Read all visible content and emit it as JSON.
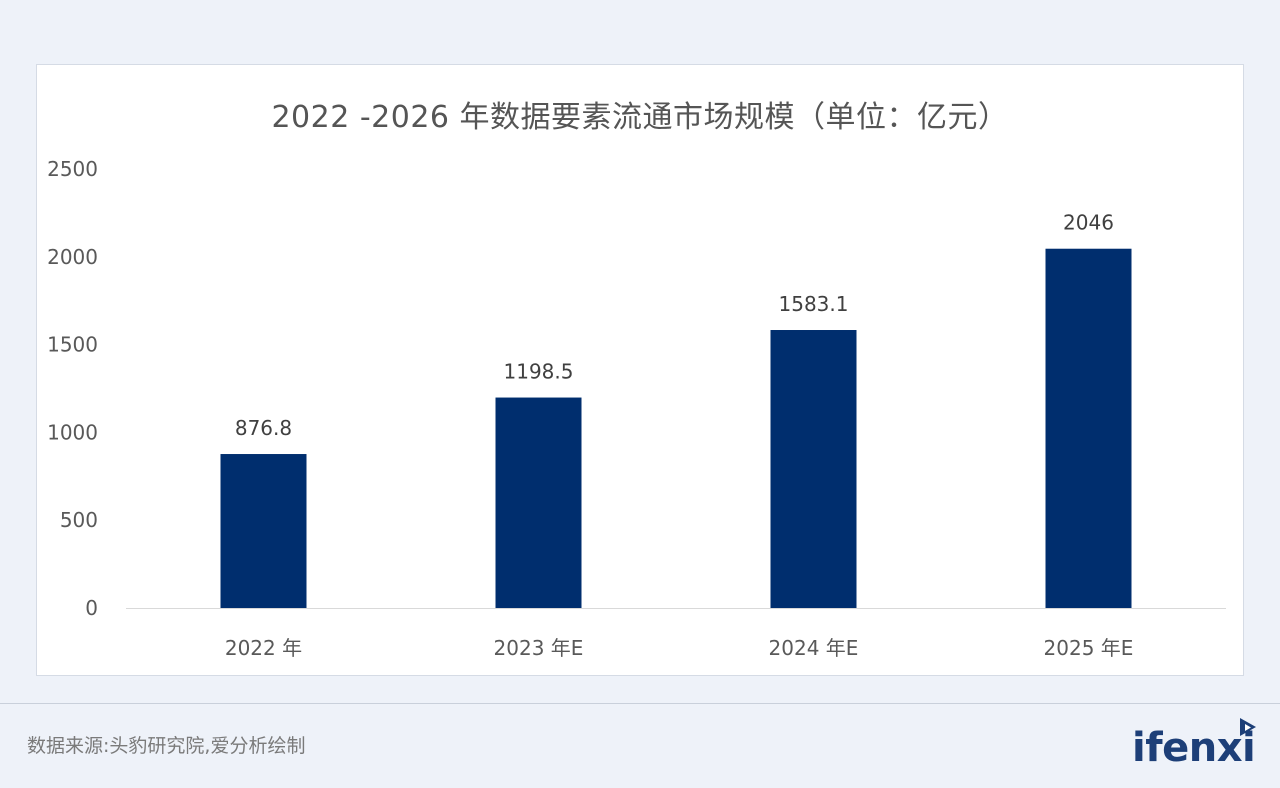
{
  "chart_data": {
    "type": "bar",
    "title": "2022 -2026 年数据要素流通市场规模（单位：亿元）",
    "categories": [
      "2022 年",
      "2023 年E",
      "2024 年E",
      "2025 年E"
    ],
    "values": [
      876.8,
      1198.5,
      1583.1,
      2046
    ],
    "data_labels": [
      "876.8",
      "1198.5",
      "1583.1",
      "2046"
    ],
    "ylim": [
      0,
      2500
    ],
    "yticks": [
      "0",
      "500",
      "1000",
      "1500",
      "2000",
      "2500"
    ],
    "ytick_values": [
      0,
      500,
      1000,
      1500,
      2000,
      2500
    ],
    "grid": false,
    "legend": "none",
    "bar_color": "#002e6e"
  },
  "footer": {
    "source": "数据来源:头豹研究院,爱分析绘制",
    "logo_text": "ifenxi",
    "logo_icon": "ifenxi-logo-icon"
  }
}
